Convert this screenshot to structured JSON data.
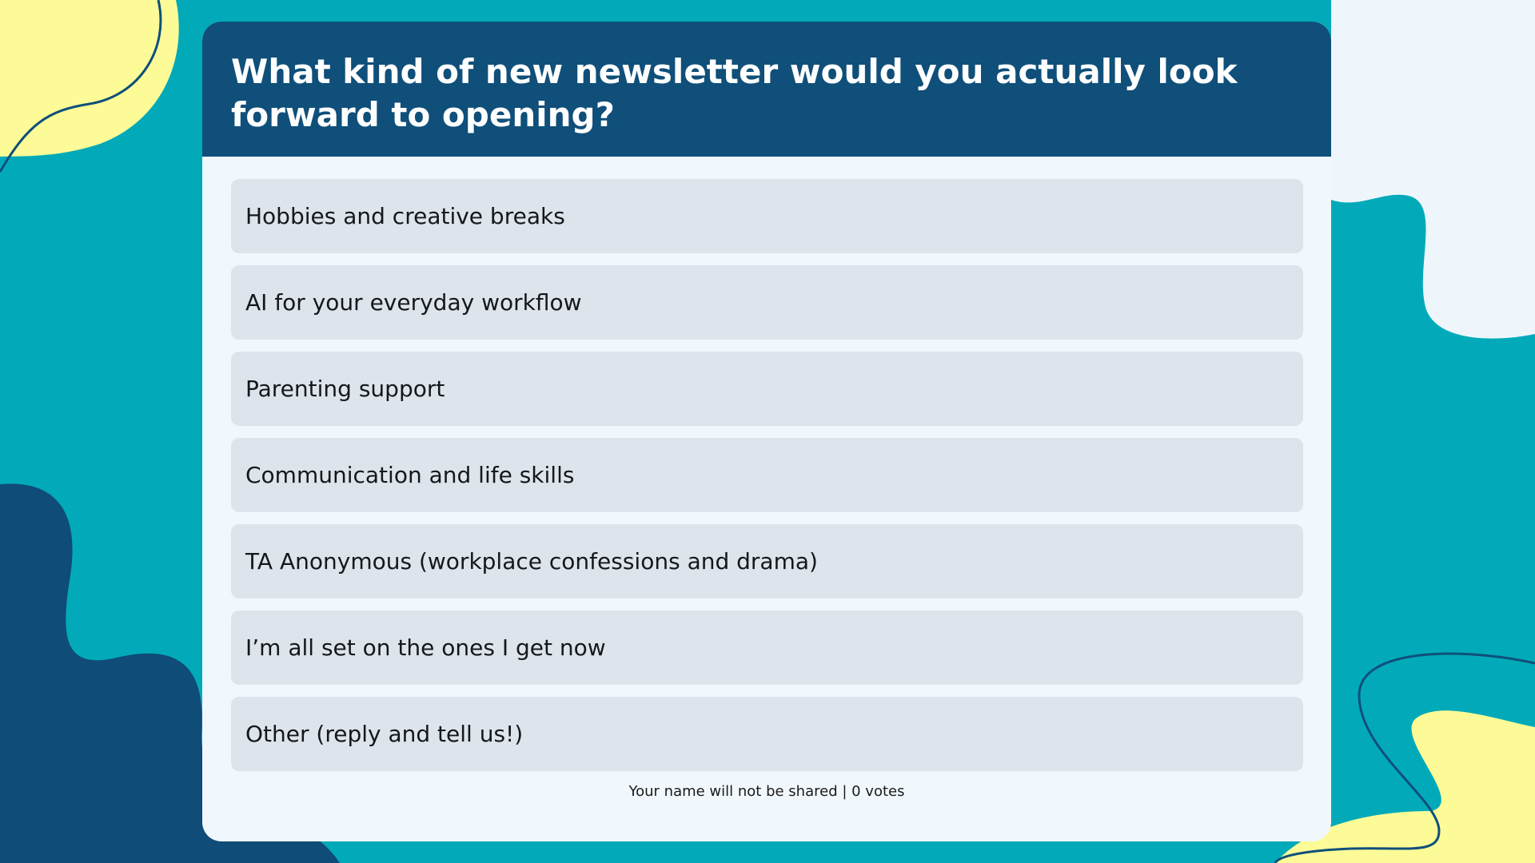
{
  "question": "What kind of new newsletter would you actually look forward to opening?",
  "options": [
    "Hobbies and creative breaks",
    "AI for your everyday workflow",
    "Parenting support",
    "Communication and life skills",
    "TA Anonymous (workplace confessions and drama)",
    "I’m all set on the ones I get now",
    "Other (reply and tell us!)"
  ],
  "footer": "Your name will not be shared | 0 votes"
}
